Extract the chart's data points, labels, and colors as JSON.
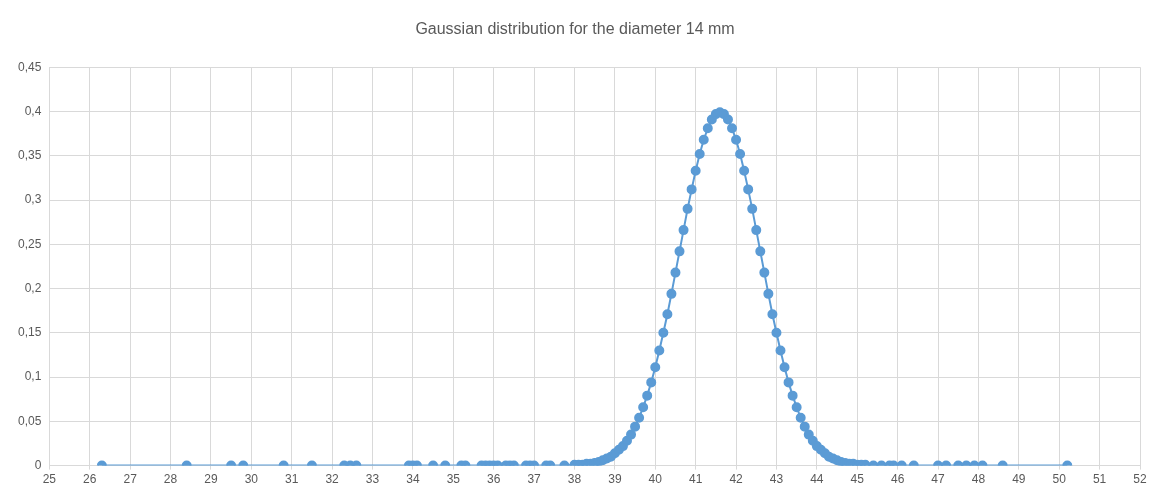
{
  "chart_data": {
    "type": "line",
    "title": "Gaussian distribution for the diameter 14 mm",
    "marker": "circle",
    "grid": true,
    "xlim": [
      25,
      52
    ],
    "xticks": [
      25,
      26,
      27,
      28,
      29,
      30,
      31,
      32,
      33,
      34,
      35,
      36,
      37,
      38,
      39,
      40,
      41,
      42,
      43,
      44,
      45,
      46,
      47,
      48,
      49,
      50,
      51,
      52
    ],
    "ylim": [
      0,
      0.45
    ],
    "yticks": [
      0,
      {
        "value": 0.05,
        "label": "0,05"
      },
      {
        "value": 0.1,
        "label": "0,1"
      },
      {
        "value": 0.15,
        "label": "0,15"
      },
      {
        "value": 0.2,
        "label": "0,2"
      },
      {
        "value": 0.25,
        "label": "0,25"
      },
      {
        "value": 0.3,
        "label": "0,3"
      },
      {
        "value": 0.35,
        "label": "0,35"
      },
      {
        "value": 0.4,
        "label": "0,4"
      },
      {
        "value": 0.45,
        "label": "0,45"
      }
    ],
    "series": [
      {
        "color": "#5b9bd5",
        "x": [
          26.3,
          28.4,
          29.5,
          29.8,
          30.8,
          31.5,
          32.3,
          32.45,
          32.6,
          33.9,
          34.0,
          34.1,
          34.5,
          34.8,
          35.2,
          35.3,
          35.7,
          35.8,
          35.9,
          36.0,
          36.1,
          36.3,
          36.4,
          36.5,
          36.8,
          36.9,
          37.0,
          37.3,
          37.4,
          37.75,
          38.0,
          38.1,
          38.2,
          38.3,
          38.4,
          38.5,
          38.6,
          38.7,
          38.8,
          38.9,
          39.0,
          39.1,
          39.2,
          39.3,
          39.4,
          39.5,
          39.6,
          39.7,
          39.8,
          39.9,
          40.0,
          40.1,
          40.2,
          40.3,
          40.4,
          40.5,
          40.6,
          40.7,
          40.8,
          40.9,
          41.0,
          41.1,
          41.2,
          41.3,
          41.4,
          41.5,
          41.6,
          41.7,
          41.8,
          41.9,
          42.0,
          42.1,
          42.2,
          42.3,
          42.4,
          42.5,
          42.6,
          42.7,
          42.8,
          42.9,
          43.0,
          43.1,
          43.2,
          43.3,
          43.4,
          43.5,
          43.6,
          43.7,
          43.8,
          43.9,
          44.0,
          44.1,
          44.2,
          44.3,
          44.4,
          44.5,
          44.6,
          44.7,
          44.8,
          44.9,
          45.0,
          45.1,
          45.2,
          45.4,
          45.6,
          45.8,
          45.9,
          46.1,
          46.4,
          47.0,
          47.2,
          47.5,
          47.7,
          47.9,
          48.1,
          48.6,
          50.2
        ],
        "values": [
          0,
          0,
          0,
          0,
          0,
          0,
          0,
          0,
          0,
          0,
          0,
          0,
          0,
          0,
          0,
          0,
          0,
          0,
          0,
          0,
          0,
          0,
          0,
          0,
          0,
          0,
          0,
          0,
          0,
          0,
          0.001,
          0.001,
          0.001,
          0.002,
          0.002,
          0.003,
          0.004,
          0.006,
          0.008,
          0.01,
          0.014,
          0.018,
          0.022,
          0.028,
          0.035,
          0.044,
          0.054,
          0.066,
          0.079,
          0.094,
          0.111,
          0.13,
          0.15,
          0.171,
          0.194,
          0.218,
          0.242,
          0.266,
          0.29,
          0.312,
          0.333,
          0.352,
          0.368,
          0.381,
          0.391,
          0.397,
          0.399,
          0.397,
          0.391,
          0.381,
          0.368,
          0.352,
          0.333,
          0.312,
          0.29,
          0.266,
          0.242,
          0.218,
          0.194,
          0.171,
          0.15,
          0.13,
          0.111,
          0.094,
          0.079,
          0.066,
          0.054,
          0.044,
          0.035,
          0.028,
          0.022,
          0.018,
          0.014,
          0.01,
          0.008,
          0.006,
          0.004,
          0.003,
          0.002,
          0.002,
          0.001,
          0.001,
          0.001,
          0,
          0,
          0,
          0,
          0,
          0,
          0,
          0,
          0,
          0,
          0,
          0,
          0,
          0
        ]
      }
    ]
  }
}
